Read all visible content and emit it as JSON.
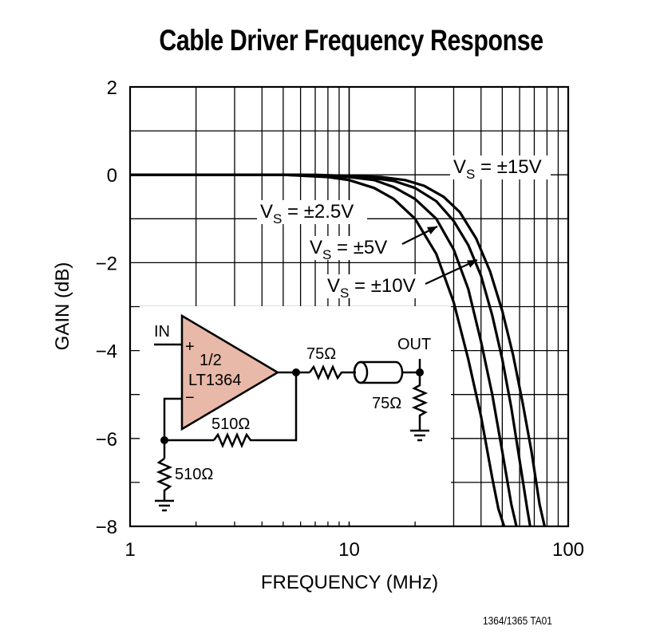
{
  "chart_data": {
    "type": "line",
    "title": "Cable Driver Frequency Response",
    "xlabel": "FREQUENCY (MHz)",
    "ylabel": "GAIN (dB)",
    "x_scale": "log",
    "xlim": [
      1,
      100
    ],
    "ylim": [
      -8,
      2
    ],
    "x_ticks": [
      "1",
      "10",
      "100"
    ],
    "y_ticks": [
      "2",
      "0",
      "−2",
      "−4",
      "−6",
      "−8"
    ],
    "grid": true,
    "series": [
      {
        "name": "VS = ±2.5V",
        "label_main": "V",
        "label_sub": "S",
        "label_rest": " = ±2.5V",
        "x": [
          1,
          5,
          8,
          10,
          13,
          16,
          20,
          25,
          30,
          35,
          40,
          45,
          48,
          51
        ],
        "y": [
          0,
          0,
          -0.05,
          -0.12,
          -0.3,
          -0.55,
          -1.0,
          -1.8,
          -2.9,
          -4.2,
          -5.5,
          -6.9,
          -7.6,
          -8.0
        ]
      },
      {
        "name": "VS = ±5V",
        "label_main": "V",
        "label_sub": "S",
        "label_rest": " = ±5V",
        "x": [
          1,
          5,
          10,
          13,
          16,
          20,
          25,
          30,
          35,
          40,
          45,
          50,
          55,
          58
        ],
        "y": [
          0,
          0,
          -0.05,
          -0.12,
          -0.28,
          -0.55,
          -1.0,
          -1.7,
          -2.6,
          -3.8,
          -5.0,
          -6.3,
          -7.5,
          -8.0
        ]
      },
      {
        "name": "VS = ±10V",
        "label_main": "V",
        "label_sub": "S",
        "label_rest": " = ±10V",
        "x": [
          1,
          6,
          12,
          16,
          20,
          25,
          30,
          35,
          40,
          45,
          50,
          55,
          60,
          65,
          67
        ],
        "y": [
          0,
          0,
          -0.05,
          -0.14,
          -0.3,
          -0.6,
          -1.05,
          -1.6,
          -2.3,
          -3.2,
          -4.2,
          -5.3,
          -6.5,
          -7.6,
          -8.0
        ]
      },
      {
        "name": "VS = ±15V",
        "label_main": "V",
        "label_sub": "S",
        "label_rest": " = ±15V",
        "x": [
          1,
          7,
          14,
          18,
          22,
          27,
          32,
          38,
          44,
          50,
          56,
          62,
          68,
          74,
          78
        ],
        "y": [
          0,
          0,
          -0.05,
          -0.12,
          -0.25,
          -0.5,
          -0.85,
          -1.45,
          -2.2,
          -3.1,
          -4.1,
          -5.2,
          -6.3,
          -7.5,
          -8.0
        ]
      }
    ]
  },
  "schematic": {
    "in_label": "IN",
    "out_label": "OUT",
    "plus_sign": "+",
    "minus_sign": "−",
    "opamp_line1": "1/2",
    "opamp_line2": "LT1364",
    "r_series": "75Ω",
    "r_load": "75Ω",
    "r_feedback": "510Ω",
    "r_ground": "510Ω",
    "opamp_fill": "#e8b8a8"
  },
  "footnote": "1364/1365 TA01"
}
